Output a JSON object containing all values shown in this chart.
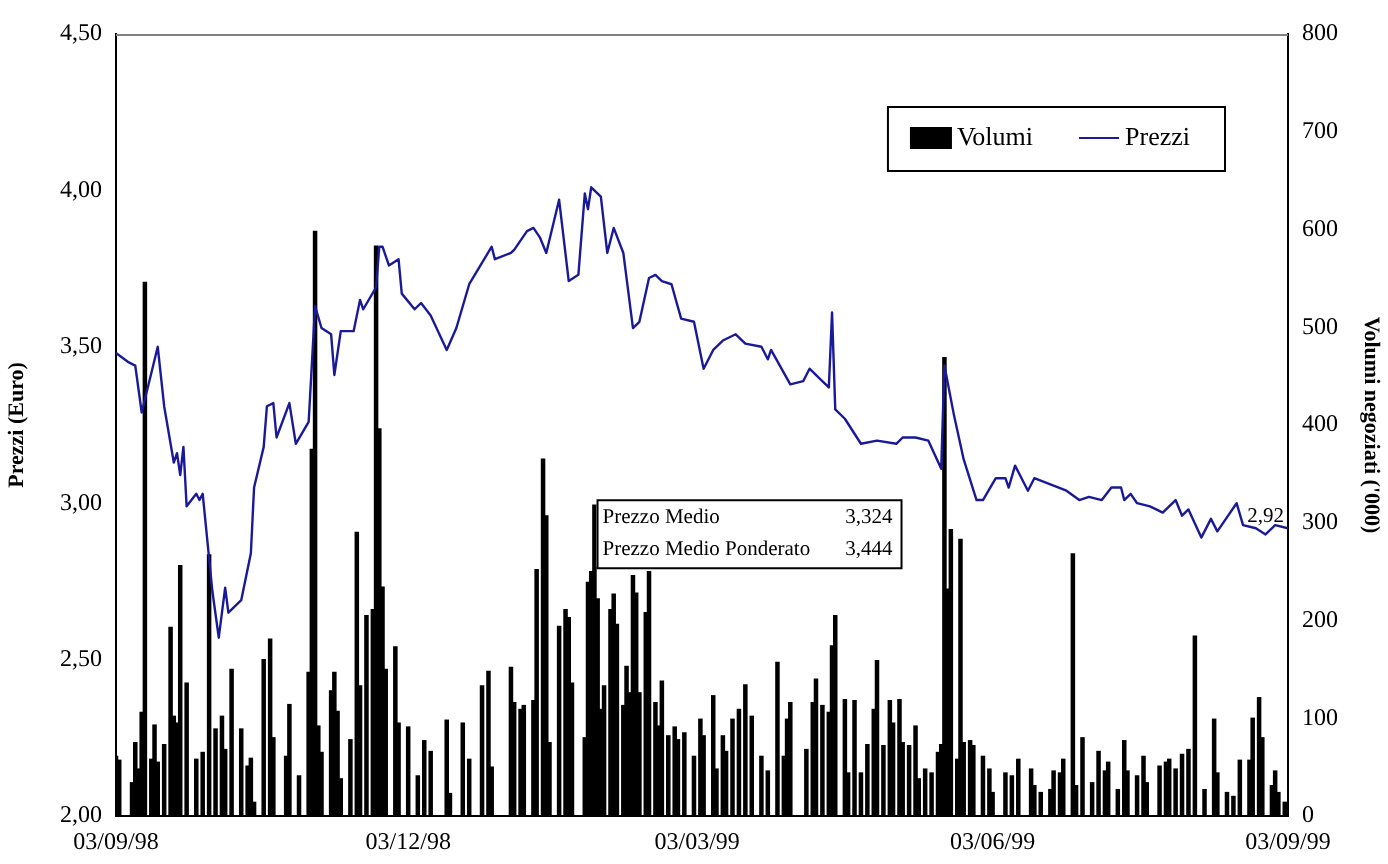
{
  "chart_data": {
    "type": "bar",
    "xlabel": null,
    "ylabel": "Prezzi (Euro)",
    "y2label": "Volumi negoziati ('000)",
    "xlim": [
      "1998-09-03",
      "1999-09-03"
    ],
    "xticks": [
      {
        "value": "1998-09-03",
        "label": "03/09/98"
      },
      {
        "value": "1998-12-03",
        "label": "03/12/98"
      },
      {
        "value": "1999-03-03",
        "label": "03/03/99"
      },
      {
        "value": "1999-06-03",
        "label": "03/06/99"
      },
      {
        "value": "1999-09-03",
        "label": "03/09/99"
      }
    ],
    "ylim": [
      2,
      4.5
    ],
    "yticks": [
      {
        "value": 2,
        "label": "2,00"
      },
      {
        "value": 2.5,
        "label": "2,50"
      },
      {
        "value": 3,
        "label": "3,00"
      },
      {
        "value": 3.5,
        "label": "3,50"
      },
      {
        "value": 4,
        "label": "4,00"
      },
      {
        "value": 4.5,
        "label": "4,50"
      }
    ],
    "y2lim": [
      0,
      800
    ],
    "y2ticks": [
      0,
      100,
      200,
      300,
      400,
      500,
      600,
      700,
      800
    ],
    "legend": "top right",
    "grid": false,
    "annotations": [
      "Prezzo Medio 3,324",
      "Prezzo Medio Ponderato 3,444",
      {
        "text": "2,92",
        "x": "1999-09-03",
        "y": 2.92
      }
    ],
    "series": [
      {
        "name": "Volumi",
        "axis": "y2",
        "color": "#000000",
        "x": [
          "1998-09-03",
          "1998-09-04",
          "1998-09-08",
          "1998-09-09",
          "1998-09-10",
          "1998-09-11",
          "1998-09-12",
          "1998-09-14",
          "1998-09-15",
          "1998-09-16",
          "1998-09-18",
          "1998-09-20",
          "1998-09-21",
          "1998-09-22",
          "1998-09-23",
          "1998-09-25",
          "1998-09-28",
          "1998-09-30",
          "1998-10-02",
          "1998-10-04",
          "1998-10-06",
          "1998-10-07",
          "1998-10-09",
          "1998-10-12",
          "1998-10-14",
          "1998-10-15",
          "1998-10-16",
          "1998-10-19",
          "1998-10-21",
          "1998-10-22",
          "1998-10-26",
          "1998-10-27",
          "1998-10-30",
          "1998-11-02",
          "1998-11-03",
          "1998-11-04",
          "1998-11-05",
          "1998-11-06",
          "1998-11-09",
          "1998-11-10",
          "1998-11-11",
          "1998-11-12",
          "1998-11-15",
          "1998-11-17",
          "1998-11-18",
          "1998-11-20",
          "1998-11-22",
          "1998-11-23",
          "1998-11-24",
          "1998-11-25",
          "1998-11-26",
          "1998-11-29",
          "1998-11-30",
          "1998-12-03",
          "1998-12-06",
          "1998-12-08",
          "1998-12-10",
          "1998-12-15",
          "1998-12-16",
          "1998-12-20",
          "1998-12-22",
          "1998-12-26",
          "1998-12-28",
          "1998-12-29",
          "1999-01-04",
          "1999-01-05",
          "1999-01-07",
          "1999-01-08",
          "1999-01-11",
          "1999-01-12",
          "1999-01-14",
          "1999-01-15",
          "1999-01-16",
          "1999-01-19",
          "1999-01-21",
          "1999-01-22",
          "1999-01-23",
          "1999-01-27",
          "1999-01-28",
          "1999-01-29",
          "1999-01-30",
          "1999-01-31",
          "1999-02-01",
          "1999-02-02",
          "1999-02-04",
          "1999-02-05",
          "1999-02-06",
          "1999-02-08",
          "1999-02-09",
          "1999-02-10",
          "1999-02-11",
          "1999-02-12",
          "1999-02-13",
          "1999-02-15",
          "1999-02-16",
          "1999-02-18",
          "1999-02-19",
          "1999-02-20",
          "1999-02-22",
          "1999-02-24",
          "1999-02-25",
          "1999-02-27",
          "1999-03-02",
          "1999-03-04",
          "1999-03-05",
          "1999-03-08",
          "1999-03-09",
          "1999-03-11",
          "1999-03-12",
          "1999-03-14",
          "1999-03-16",
          "1999-03-18",
          "1999-03-20",
          "1999-03-23",
          "1999-03-25",
          "1999-03-28",
          "1999-03-30",
          "1999-03-31",
          "1999-04-01",
          "1999-04-06",
          "1999-04-08",
          "1999-04-09",
          "1999-04-11",
          "1999-04-13",
          "1999-04-14",
          "1999-04-15",
          "1999-04-18",
          "1999-04-19",
          "1999-04-21",
          "1999-04-23",
          "1999-04-25",
          "1999-04-27",
          "1999-04-28",
          "1999-04-30",
          "1999-05-02",
          "1999-05-03",
          "1999-05-05",
          "1999-05-06",
          "1999-05-08",
          "1999-05-10",
          "1999-05-11",
          "1999-05-13",
          "1999-05-15",
          "1999-05-17",
          "1999-05-18",
          "1999-05-19",
          "1999-05-20",
          "1999-05-21",
          "1999-05-23",
          "1999-05-24",
          "1999-05-25",
          "1999-05-27",
          "1999-05-28",
          "1999-05-31",
          "1999-06-02",
          "1999-06-03",
          "1999-06-07",
          "1999-06-09",
          "1999-06-11",
          "1999-06-15",
          "1999-06-16",
          "1999-06-18",
          "1999-06-21",
          "1999-06-22",
          "1999-06-24",
          "1999-06-25",
          "1999-06-28",
          "1999-06-29",
          "1999-07-01",
          "1999-07-04",
          "1999-07-06",
          "1999-07-08",
          "1999-07-09",
          "1999-07-12",
          "1999-07-14",
          "1999-07-15",
          "1999-07-18",
          "1999-07-20",
          "1999-07-21",
          "1999-07-25",
          "1999-07-27",
          "1999-07-28",
          "1999-07-30",
          "1999-08-01",
          "1999-08-03",
          "1999-08-05",
          "1999-08-08",
          "1999-08-11",
          "1999-08-12",
          "1999-08-15",
          "1999-08-17",
          "1999-08-19",
          "1999-08-22",
          "1999-08-23",
          "1999-08-25",
          "1999-08-26",
          "1999-08-29",
          "1999-08-30",
          "1999-08-31",
          "1999-09-02"
        ],
        "values": [
          61,
          57,
          34,
          75,
          48,
          106,
          546,
          58,
          93,
          55,
          73,
          193,
          102,
          95,
          256,
          136,
          58,
          65,
          267,
          89,
          102,
          68,
          150,
          89,
          51,
          59,
          14,
          160,
          181,
          80,
          61,
          114,
          41,
          147,
          375,
          598,
          92,
          65,
          128,
          147,
          107,
          38,
          78,
          290,
          133,
          205,
          211,
          583,
          396,
          234,
          150,
          173,
          95,
          91,
          41,
          77,
          66,
          98,
          23,
          95,
          58,
          133,
          148,
          50,
          152,
          116,
          109,
          113,
          118,
          252,
          365,
          307,
          75,
          194,
          211,
          203,
          136,
          80,
          239,
          250,
          318,
          222,
          109,
          133,
          211,
          227,
          196,
          113,
          153,
          126,
          246,
          228,
          126,
          208,
          250,
          116,
          92,
          138,
          82,
          91,
          78,
          85,
          61,
          99,
          82,
          123,
          48,
          82,
          66,
          99,
          109,
          134,
          102,
          61,
          46,
          157,
          61,
          99,
          116,
          68,
          116,
          140,
          113,
          106,
          174,
          205,
          119,
          44,
          118,
          44,
          73,
          109,
          159,
          72,
          118,
          95,
          119,
          75,
          72,
          92,
          38,
          48,
          44,
          65,
          73,
          469,
          232,
          293,
          58,
          283,
          75,
          77,
          72,
          61,
          48,
          24,
          44,
          41,
          58,
          48,
          31,
          24,
          27,
          46,
          44,
          58,
          268,
          31,
          80,
          34,
          66,
          46,
          55,
          27,
          77,
          46,
          41,
          61,
          34,
          51,
          55,
          58,
          48,
          63,
          68,
          184,
          27,
          99,
          44,
          24,
          20,
          57,
          57,
          100,
          121,
          80,
          31,
          46,
          24,
          14
        ]
      },
      {
        "name": "Prezzi",
        "type": "line",
        "axis": "y",
        "color": "#1a1a99",
        "x": [
          "1998-09-03",
          "1998-09-07",
          "1998-09-09",
          "1998-09-11",
          "1998-09-16",
          "1998-09-18",
          "1998-09-21",
          "1998-09-22",
          "1998-09-23",
          "1998-09-24",
          "1998-09-25",
          "1998-09-28",
          "1998-09-29",
          "1998-09-30",
          "1998-10-03",
          "1998-10-05",
          "1998-10-07",
          "1998-10-08",
          "1998-10-12",
          "1998-10-15",
          "1998-10-16",
          "1998-10-19",
          "1998-10-20",
          "1998-10-22",
          "1998-10-23",
          "1998-10-27",
          "1998-10-29",
          "1998-11-02",
          "1998-11-04",
          "1998-11-06",
          "1998-11-09",
          "1998-11-10",
          "1998-11-12",
          "1998-11-16",
          "1998-11-18",
          "1998-11-19",
          "1998-11-23",
          "1998-11-24",
          "1998-11-25",
          "1998-11-27",
          "1998-11-30",
          "1998-12-01",
          "1998-12-05",
          "1998-12-07",
          "1998-12-10",
          "1998-12-15",
          "1998-12-18",
          "1998-12-22",
          "1998-12-29",
          "1998-12-30",
          "1999-01-04",
          "1999-01-05",
          "1999-01-09",
          "1999-01-11",
          "1999-01-13",
          "1999-01-15",
          "1999-01-19",
          "1999-01-22",
          "1999-01-25",
          "1999-01-27",
          "1999-01-28",
          "1999-01-29",
          "1999-02-01",
          "1999-02-03",
          "1999-02-05",
          "1999-02-08",
          "1999-02-11",
          "1999-02-13",
          "1999-02-16",
          "1999-02-18",
          "1999-02-20",
          "1999-02-23",
          "1999-02-26",
          "1999-03-02",
          "1999-03-05",
          "1999-03-08",
          "1999-03-11",
          "1999-03-15",
          "1999-03-18",
          "1999-03-23",
          "1999-03-25",
          "1999-03-26",
          "1999-04-01",
          "1999-04-05",
          "1999-04-07",
          "1999-04-10",
          "1999-04-13",
          "1999-04-14",
          "1999-04-15",
          "1999-04-18",
          "1999-04-23",
          "1999-04-28",
          "1999-05-04",
          "1999-05-06",
          "1999-05-10",
          "1999-05-14",
          "1999-05-18",
          "1999-05-19",
          "1999-05-22",
          "1999-05-25",
          "1999-05-29",
          "1999-05-31",
          "1999-06-04",
          "1999-06-07",
          "1999-06-08",
          "1999-06-10",
          "1999-06-14",
          "1999-06-16",
          "1999-06-21",
          "1999-06-26",
          "1999-06-30",
          "1999-07-03",
          "1999-07-07",
          "1999-07-10",
          "1999-07-13",
          "1999-07-14",
          "1999-07-16",
          "1999-07-18",
          "1999-07-22",
          "1999-07-26",
          "1999-07-30",
          "1999-08-01",
          "1999-08-03",
          "1999-08-07",
          "1999-08-10",
          "1999-08-12",
          "1999-08-18",
          "1999-08-20",
          "1999-08-24",
          "1999-08-27",
          "1999-08-30",
          "1999-09-03"
        ],
        "values": [
          3.48,
          3.45,
          3.44,
          3.29,
          3.5,
          3.31,
          3.13,
          3.16,
          3.09,
          3.18,
          2.99,
          3.03,
          3.01,
          3.03,
          2.72,
          2.57,
          2.73,
          2.65,
          2.69,
          2.84,
          3.05,
          3.18,
          3.31,
          3.32,
          3.21,
          3.32,
          3.19,
          3.26,
          3.63,
          3.56,
          3.54,
          3.41,
          3.55,
          3.55,
          3.65,
          3.62,
          3.69,
          3.82,
          3.82,
          3.76,
          3.78,
          3.67,
          3.62,
          3.64,
          3.6,
          3.49,
          3.56,
          3.7,
          3.82,
          3.78,
          3.8,
          3.81,
          3.87,
          3.88,
          3.85,
          3.8,
          3.97,
          3.71,
          3.73,
          3.99,
          3.94,
          4.01,
          3.98,
          3.8,
          3.88,
          3.8,
          3.56,
          3.58,
          3.72,
          3.73,
          3.71,
          3.7,
          3.59,
          3.58,
          3.43,
          3.49,
          3.52,
          3.54,
          3.51,
          3.5,
          3.46,
          3.49,
          3.38,
          3.39,
          3.43,
          3.4,
          3.37,
          3.61,
          3.3,
          3.27,
          3.19,
          3.2,
          3.19,
          3.21,
          3.21,
          3.2,
          3.11,
          3.44,
          3.28,
          3.14,
          3.01,
          3.01,
          3.08,
          3.08,
          3.05,
          3.12,
          3.04,
          3.08,
          3.06,
          3.04,
          3.01,
          3.02,
          3.01,
          3.05,
          3.05,
          3.01,
          3.03,
          3,
          2.99,
          2.97,
          3.01,
          2.96,
          2.98,
          2.89,
          2.95,
          2.91,
          3,
          2.93,
          2.92,
          2.9,
          2.93,
          2.92
        ]
      }
    ]
  }
}
